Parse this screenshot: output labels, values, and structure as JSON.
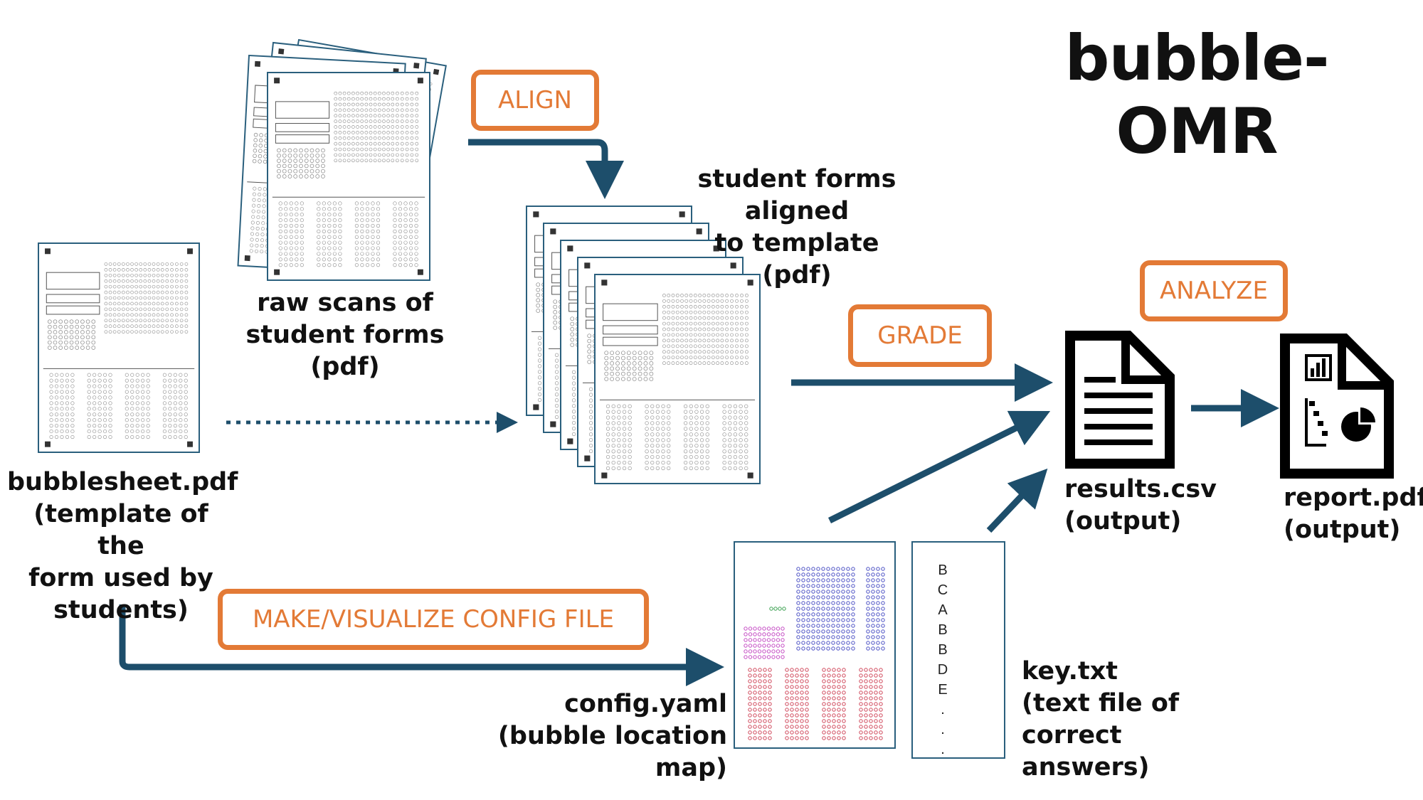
{
  "title": "bubble-OMR",
  "steps": {
    "align": "ALIGN",
    "grade": "GRADE",
    "analyze": "ANALYZE",
    "config": "MAKE/VISUALIZE CONFIG FILE"
  },
  "labels": {
    "bubblesheet": [
      "bubblesheet.pdf",
      "(template of the",
      "form used by",
      "students)"
    ],
    "raw_scans": [
      "raw scans of",
      "student forms",
      "(pdf)"
    ],
    "aligned": [
      "student forms aligned",
      "to template",
      "(pdf)"
    ],
    "results": [
      "results.csv",
      "(output)"
    ],
    "report": [
      "report.pdf",
      "(output)"
    ],
    "config": [
      "config.yaml",
      "(bubble location map)"
    ],
    "key": [
      "key.txt",
      "(text file of",
      "correct answers)"
    ]
  },
  "key_letters": [
    "B",
    "C",
    "A",
    "B",
    "B",
    "D",
    "E",
    ".",
    ".",
    "."
  ],
  "colors": {
    "accent": "#e37a36",
    "arrow": "#1d4e6b",
    "sheet_border": "#2a5f7d",
    "bubble_blue": "#4a4fc4",
    "bubble_pink": "#c54cc4",
    "bubble_red": "#d0465a",
    "bubble_green": "#3aa050"
  }
}
